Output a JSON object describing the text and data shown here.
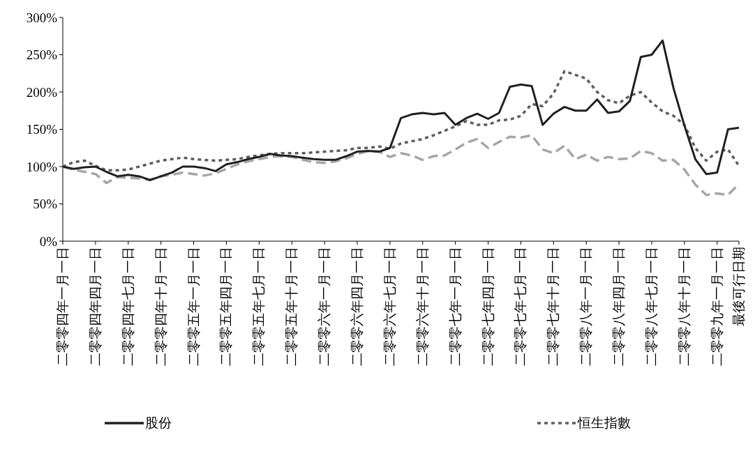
{
  "chart_data": {
    "type": "line",
    "ylim": [
      0,
      300
    ],
    "yticks": [
      {
        "value": 0,
        "label": "0%"
      },
      {
        "value": 50,
        "label": "50%"
      },
      {
        "value": 100,
        "label": "100%"
      },
      {
        "value": 150,
        "label": "150%"
      },
      {
        "value": 200,
        "label": "200%"
      },
      {
        "value": 250,
        "label": "250%"
      },
      {
        "value": 300,
        "label": "300%"
      }
    ],
    "categories": [
      "二零零四年一月一日",
      null,
      null,
      "二零零四年四月一日",
      null,
      null,
      "二零零四年七月一日",
      null,
      null,
      "二零零四年十月一日",
      null,
      null,
      "二零零五年一月一日",
      null,
      null,
      "二零零五年四月一日",
      null,
      null,
      "二零零五年七月一日",
      null,
      null,
      "二零零五年十月一日",
      null,
      null,
      "二零零六年一月一日",
      null,
      null,
      "二零零六年四月一日",
      null,
      null,
      "二零零六年七月一日",
      null,
      null,
      "二零零六年十月一日",
      null,
      null,
      "二零零七年一月一日",
      null,
      null,
      "二零零七年四月一日",
      null,
      null,
      "二零零七年七月一日",
      null,
      null,
      "二零零七年十月一日",
      null,
      null,
      "二零零八年一月一日",
      null,
      null,
      "二零零八年四月一日",
      null,
      null,
      "二零零八年七月一日",
      null,
      null,
      "二零零八年十月一日",
      null,
      null,
      "二零零九年一月一日",
      null,
      "最後可行日期"
    ],
    "grid": false,
    "legend": "bottom",
    "marker": "none",
    "series": [
      {
        "name": "股份",
        "color": "#231f20",
        "line_style": "solid",
        "values": [
          100,
          97,
          99,
          100,
          93,
          87,
          89,
          87,
          82,
          87,
          92,
          100,
          100,
          98,
          94,
          103,
          106,
          110,
          113,
          117,
          115,
          114,
          112,
          110,
          109,
          109,
          114,
          120,
          121,
          120,
          125,
          165,
          170,
          172,
          170,
          172,
          156,
          165,
          171,
          164,
          172,
          207,
          210,
          208,
          156,
          171,
          180,
          175,
          175,
          190,
          172,
          174,
          188,
          247,
          250,
          269,
          205,
          155,
          110,
          90,
          92,
          150,
          152
        ]
      },
      {
        "color": "#a6a6a6",
        "line_style": "dashed",
        "values": [
          100,
          96,
          93,
          90,
          78,
          86,
          85,
          84,
          82,
          87,
          89,
          92,
          90,
          88,
          91,
          97,
          103,
          107,
          110,
          113,
          114,
          113,
          109,
          106,
          105,
          107,
          111,
          117,
          121,
          120,
          113,
          118,
          115,
          109,
          114,
          115,
          123,
          132,
          137,
          125,
          133,
          140,
          139,
          142,
          123,
          118,
          128,
          110,
          116,
          108,
          113,
          110,
          111,
          121,
          118,
          108,
          109,
          96,
          76,
          62,
          64,
          62,
          77
        ]
      },
      {
        "name": "恒生指數",
        "color": "#5e5e5e",
        "line_style": "dotted",
        "values": [
          100,
          106,
          108,
          101,
          95,
          95,
          96,
          100,
          104,
          108,
          110,
          112,
          110,
          109,
          108,
          109,
          110,
          113,
          115,
          117,
          118,
          118,
          118,
          119,
          120,
          121,
          122,
          125,
          125,
          127,
          124,
          131,
          134,
          137,
          142,
          148,
          154,
          161,
          156,
          156,
          162,
          163,
          168,
          184,
          181,
          198,
          228,
          223,
          218,
          200,
          189,
          185,
          195,
          200,
          186,
          174,
          168,
          156,
          125,
          108,
          120,
          123,
          101
        ]
      }
    ]
  }
}
